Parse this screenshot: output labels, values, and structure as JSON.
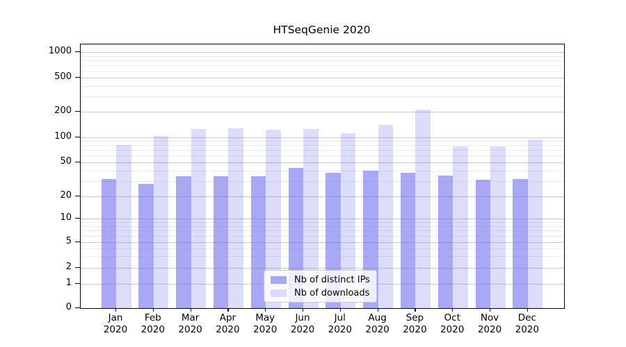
{
  "title": "HTSeqGenie 2020",
  "colors": {
    "bar_base": "#6666ee",
    "ips_on_white": "#a8a8f1",
    "downloads_on_white": "#dcdcf8",
    "grid_major": "#c9c9c9",
    "grid_minor": "#ececec",
    "spine": "#000000"
  },
  "legend": {
    "entries": [
      "Nb of distinct IPs",
      "Nb of downloads"
    ]
  },
  "chart_data": {
    "type": "bar",
    "title": "HTSeqGenie 2020",
    "categories": [
      "Jan 2020",
      "Feb 2020",
      "Mar 2020",
      "Apr 2020",
      "May 2020",
      "Jun 2020",
      "Jul 2020",
      "Aug 2020",
      "Sep 2020",
      "Oct 2020",
      "Nov 2020",
      "Dec 2020"
    ],
    "series": [
      {
        "name": "Nb of distinct IPs",
        "values": [
          32,
          28,
          34,
          34,
          34,
          43,
          38,
          40,
          38,
          35,
          31,
          32
        ],
        "color_rgba": "rgba(102,102,238,0.57)",
        "color_hex": "#a8a8f1"
      },
      {
        "name": "Nb of downloads",
        "values": [
          81,
          103,
          124,
          126,
          121,
          124,
          111,
          138,
          211,
          77,
          78,
          93
        ],
        "color_rgba": "rgba(102,102,238,0.23)",
        "color_hex": "#dcdcf8"
      }
    ],
    "xlabel": "",
    "ylabel": "",
    "y_scale": "symlog",
    "y_ticks": [
      0,
      1,
      2,
      5,
      10,
      20,
      50,
      100,
      200,
      500,
      1000
    ],
    "y_minor_ticks": [
      3,
      4,
      6,
      7,
      8,
      9,
      30,
      40,
      60,
      70,
      80,
      90,
      300,
      400,
      600,
      700,
      800,
      900
    ],
    "ylim": [
      0,
      1200
    ],
    "grid": "both",
    "legend_position": "lower center"
  }
}
